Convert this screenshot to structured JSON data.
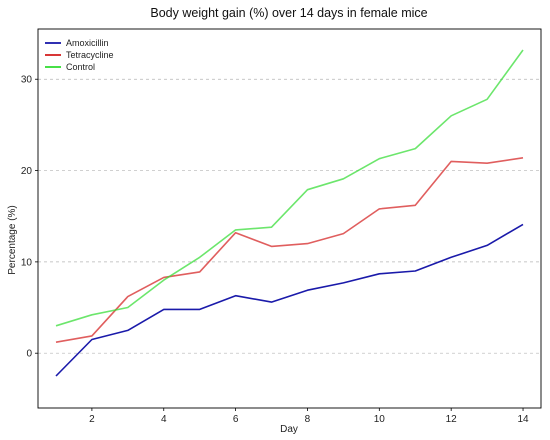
{
  "chart_data": {
    "type": "line",
    "title": "Body weight gain (%) over 14 days in female mice",
    "xlabel": "Day",
    "ylabel": "Percentage (%)",
    "x": [
      1,
      2,
      3,
      4,
      5,
      6,
      7,
      8,
      9,
      10,
      11,
      12,
      13,
      14
    ],
    "xlim": [
      0.5,
      14.5
    ],
    "ylim": [
      -6,
      35.5
    ],
    "xticks": [
      2,
      4,
      6,
      8,
      10,
      12,
      14
    ],
    "yticks": [
      0,
      10,
      20,
      30
    ],
    "grid": "horizontal-dashed",
    "legend_position": "top-left",
    "series": [
      {
        "name": "Amoxicillin",
        "color": "#1a1aaa",
        "values": [
          -2.5,
          1.5,
          2.5,
          4.8,
          4.8,
          6.3,
          5.6,
          6.9,
          7.7,
          8.7,
          9.0,
          10.5,
          11.8,
          14.1
        ]
      },
      {
        "name": "Tetracycline",
        "color": "#d42020",
        "values": [
          1.2,
          1.9,
          6.2,
          8.3,
          8.9,
          13.2,
          11.7,
          12.0,
          13.1,
          15.8,
          16.2,
          21.0,
          20.8,
          21.4
        ]
      },
      {
        "name": "Control",
        "color": "#33dd33",
        "values": [
          3.0,
          4.2,
          5.0,
          8.0,
          10.5,
          13.5,
          13.8,
          17.9,
          19.1,
          21.3,
          22.4,
          26.0,
          27.8,
          33.2
        ]
      }
    ]
  }
}
